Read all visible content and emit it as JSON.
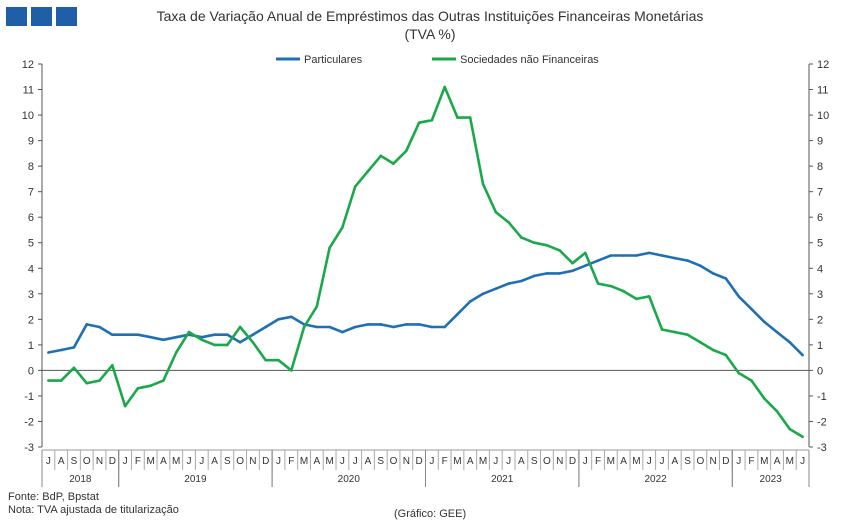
{
  "logo": {
    "icon": "publisher-logo-icon",
    "color": "#1f5fa8"
  },
  "title": "Taxa de Variação Anual de Empréstimos das Outras Instituições Financeiras Monetárias",
  "subtitle": "(TVA %)",
  "footer": {
    "source": "Fonte: BdP, Bpstat",
    "note": "Nota: TVA  ajustada de titularização",
    "credit": "(Gráfico: GEE)"
  },
  "chart_data": {
    "type": "line",
    "title": "Taxa de Variação Anual de Empréstimos das Outras Instituições Financeiras Monetárias",
    "subtitle": "(TVA %)",
    "x": [
      "2018-07",
      "2018-08",
      "2018-09",
      "2018-10",
      "2018-11",
      "2018-12",
      "2019-01",
      "2019-02",
      "2019-03",
      "2019-04",
      "2019-05",
      "2019-06",
      "2019-07",
      "2019-08",
      "2019-09",
      "2019-10",
      "2019-11",
      "2019-12",
      "2020-01",
      "2020-02",
      "2020-03",
      "2020-04",
      "2020-05",
      "2020-06",
      "2020-07",
      "2020-08",
      "2020-09",
      "2020-10",
      "2020-11",
      "2020-12",
      "2021-01",
      "2021-02",
      "2021-03",
      "2021-04",
      "2021-05",
      "2021-06",
      "2021-07",
      "2021-08",
      "2021-09",
      "2021-10",
      "2021-11",
      "2021-12",
      "2022-01",
      "2022-02",
      "2022-03",
      "2022-04",
      "2022-05",
      "2022-06",
      "2022-07",
      "2022-08",
      "2022-09",
      "2022-10",
      "2022-11",
      "2022-12",
      "2023-01",
      "2023-02",
      "2023-03",
      "2023-04",
      "2023-05",
      "2023-06"
    ],
    "month_labels": [
      "J",
      "A",
      "S",
      "O",
      "N",
      "D",
      "J",
      "F",
      "M",
      "A",
      "M",
      "J",
      "J",
      "A",
      "S",
      "O",
      "N",
      "D",
      "J",
      "F",
      "M",
      "A",
      "M",
      "J",
      "J",
      "A",
      "S",
      "O",
      "N",
      "D",
      "J",
      "F",
      "M",
      "A",
      "M",
      "J",
      "J",
      "A",
      "S",
      "O",
      "N",
      "D",
      "J",
      "F",
      "M",
      "A",
      "M",
      "J",
      "J",
      "A",
      "S",
      "O",
      "N",
      "D",
      "J",
      "F",
      "M",
      "A",
      "M",
      "J"
    ],
    "year_groups": [
      {
        "label": "2018",
        "start": 0,
        "count": 6
      },
      {
        "label": "2019",
        "start": 6,
        "count": 12
      },
      {
        "label": "2020",
        "start": 18,
        "count": 12
      },
      {
        "label": "2021",
        "start": 30,
        "count": 12
      },
      {
        "label": "2022",
        "start": 42,
        "count": 12
      },
      {
        "label": "2023",
        "start": 54,
        "count": 6
      }
    ],
    "ylim": [
      -3,
      12
    ],
    "yticks": [
      -3,
      -2,
      -1,
      0,
      1,
      2,
      3,
      4,
      5,
      6,
      7,
      8,
      9,
      10,
      11,
      12
    ],
    "grid": false,
    "legend_position": "top-center",
    "series": [
      {
        "name": "Particulares",
        "color": "#1f6fb5",
        "values": [
          0.7,
          0.8,
          0.9,
          1.8,
          1.7,
          1.4,
          1.4,
          1.4,
          1.3,
          1.2,
          1.3,
          1.4,
          1.3,
          1.4,
          1.4,
          1.1,
          1.4,
          1.7,
          2.0,
          2.1,
          1.8,
          1.7,
          1.7,
          1.5,
          1.7,
          1.8,
          1.8,
          1.7,
          1.8,
          1.8,
          1.7,
          1.7,
          2.2,
          2.7,
          3.0,
          3.2,
          3.4,
          3.5,
          3.7,
          3.8,
          3.8,
          3.9,
          4.1,
          4.3,
          4.5,
          4.5,
          4.5,
          4.6,
          4.5,
          4.4,
          4.3,
          4.1,
          3.8,
          3.6,
          2.9,
          2.4,
          1.9,
          1.5,
          1.1,
          0.6
        ]
      },
      {
        "name": "Sociedades não Financeiras",
        "color": "#1aa84a",
        "values": [
          -0.4,
          -0.4,
          0.1,
          -0.5,
          -0.4,
          0.2,
          -1.4,
          -0.7,
          -0.6,
          -0.4,
          0.7,
          1.5,
          1.2,
          1.0,
          1.0,
          1.7,
          1.1,
          0.4,
          0.4,
          0.0,
          1.7,
          2.5,
          4.8,
          5.6,
          7.2,
          7.8,
          8.4,
          8.1,
          8.6,
          9.7,
          9.8,
          11.1,
          9.9,
          9.9,
          7.3,
          6.2,
          5.8,
          5.2,
          5.0,
          4.9,
          4.7,
          4.2,
          4.6,
          3.4,
          3.3,
          3.1,
          2.8,
          2.9,
          1.6,
          1.5,
          1.4,
          1.1,
          0.8,
          0.6,
          -0.1,
          -0.4,
          -1.1,
          -1.6,
          -2.3,
          -2.6
        ]
      }
    ]
  }
}
